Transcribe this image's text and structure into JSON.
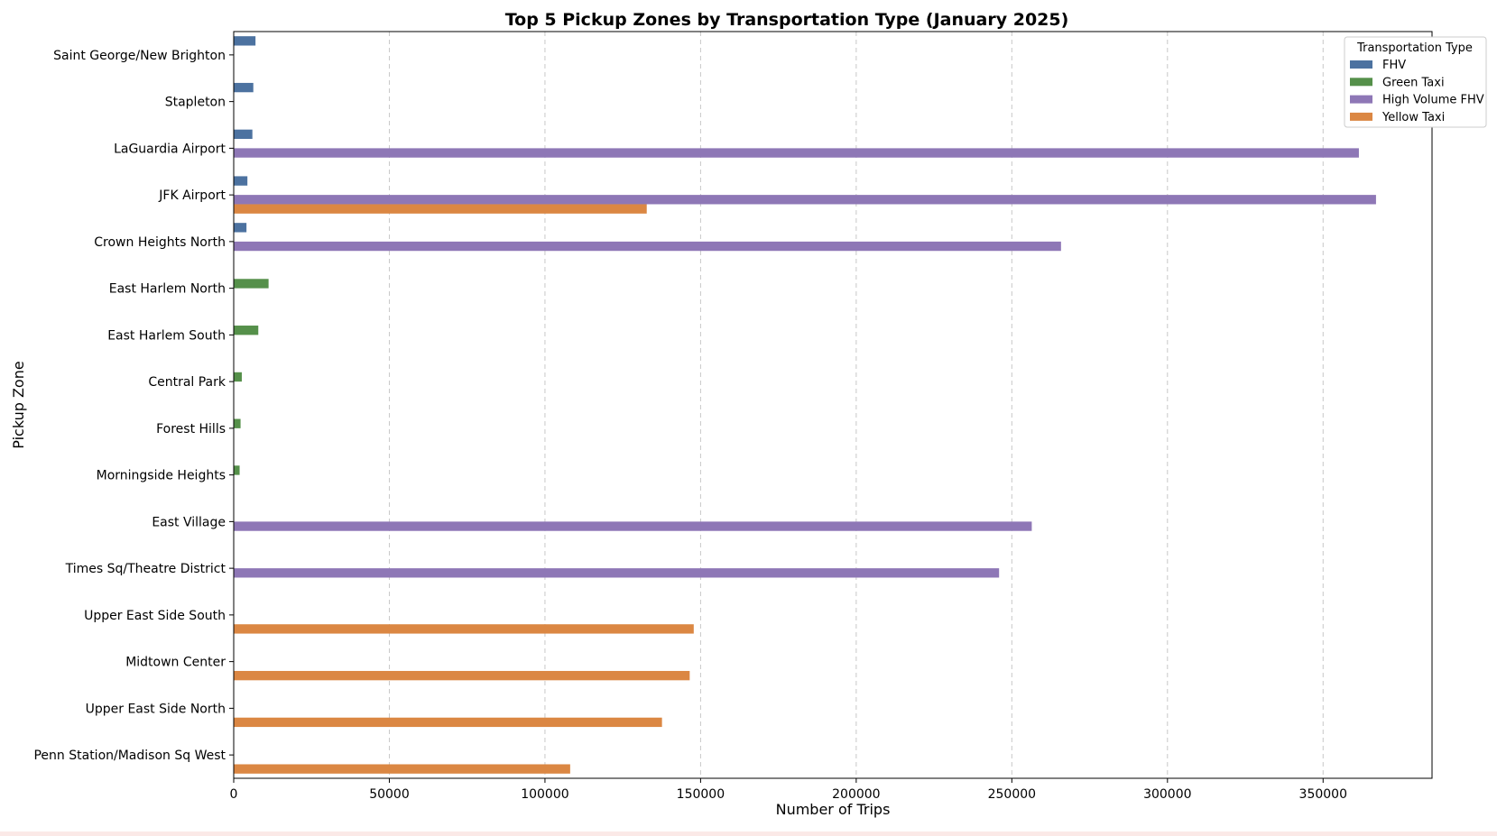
{
  "chart_data": {
    "type": "bar",
    "orientation": "horizontal",
    "title": "Top 5 Pickup Zones by Transportation Type (January 2025)",
    "xlabel": "Number of Trips",
    "ylabel": "Pickup Zone",
    "xlim": [
      0,
      385000
    ],
    "xticks": [
      0,
      50000,
      100000,
      150000,
      200000,
      250000,
      300000,
      350000
    ],
    "grid": "x-dashed",
    "legend": {
      "title": "Transportation Type",
      "position": "top-right"
    },
    "categories": [
      "Saint George/New Brighton",
      "Stapleton",
      "LaGuardia Airport",
      "JFK Airport",
      "Crown Heights North",
      "East Harlem North",
      "East Harlem South",
      "Central Park",
      "Forest Hills",
      "Morningside Heights",
      "East Village",
      "Times Sq/Theatre District",
      "Upper East Side South",
      "Midtown Center",
      "Upper East Side North",
      "Penn Station/Madison Sq West"
    ],
    "series": [
      {
        "name": "FHV",
        "color": "#4c72a0",
        "values": [
          7000,
          6300,
          6000,
          4400,
          4100,
          null,
          null,
          null,
          null,
          null,
          null,
          null,
          null,
          null,
          null,
          null
        ]
      },
      {
        "name": "Green Taxi",
        "color": "#55904a",
        "values": [
          null,
          null,
          null,
          null,
          null,
          11200,
          7900,
          2600,
          2200,
          1900,
          null,
          null,
          null,
          null,
          null,
          null
        ]
      },
      {
        "name": "High Volume FHV",
        "color": "#8e77b6",
        "values": [
          null,
          null,
          361500,
          367000,
          265800,
          null,
          null,
          null,
          null,
          null,
          256400,
          245900,
          null,
          null,
          null,
          null
        ]
      },
      {
        "name": "Yellow Taxi",
        "color": "#db8743",
        "values": [
          null,
          null,
          null,
          132700,
          null,
          null,
          null,
          null,
          null,
          null,
          null,
          null,
          147800,
          146500,
          137600,
          108100
        ]
      }
    ]
  }
}
